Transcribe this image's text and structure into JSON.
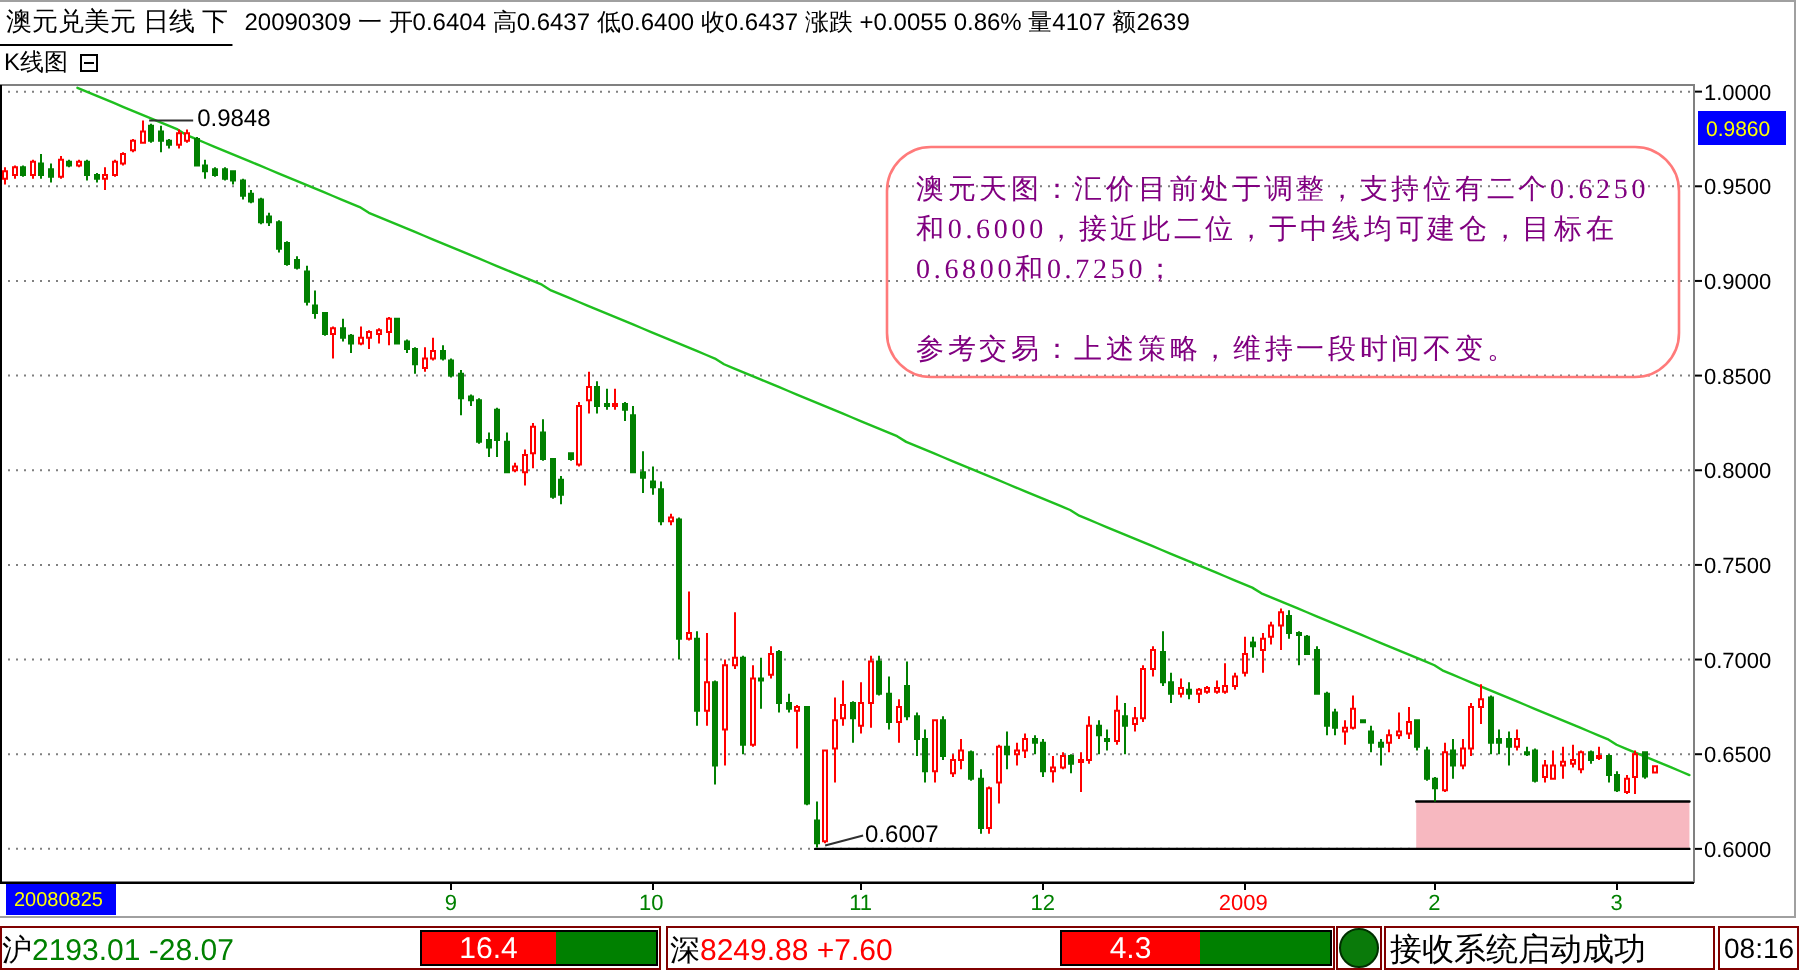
{
  "chart_data": {
    "type": "candlestick",
    "title": "澳元兑美元 日线 下",
    "subtitle": "20090309 一 开0.6404 高0.6437 低0.6400 收0.6437 涨跌 +0.0055 0.86% 量4107 额2639",
    "categories": [
      null,
      null,
      null,
      null,
      null,
      null,
      null,
      null,
      null,
      null,
      null,
      null,
      null,
      null,
      null,
      null,
      null,
      null,
      null,
      null,
      null,
      null,
      null,
      null,
      null,
      null,
      null,
      null,
      null,
      null,
      null,
      null,
      null,
      null,
      null,
      null,
      null,
      null,
      null,
      null,
      null,
      null,
      null,
      null,
      null,
      null,
      null,
      null,
      null,
      "9",
      null,
      null,
      null,
      null,
      null,
      null,
      null,
      null,
      null,
      null,
      null,
      null,
      null,
      null,
      null,
      null,
      null,
      null,
      null,
      null,
      null,
      "10",
      null,
      null,
      null,
      null,
      null,
      null,
      null,
      null,
      null,
      null,
      null,
      null,
      null,
      null,
      null,
      null,
      null,
      null,
      null,
      null,
      null,
      null,
      "11",
      null,
      null,
      null,
      null,
      null,
      null,
      null,
      null,
      null,
      null,
      null,
      null,
      null,
      null,
      null,
      null,
      null,
      null,
      null,
      "12",
      null,
      null,
      null,
      null,
      null,
      null,
      null,
      null,
      null,
      null,
      null,
      null,
      null,
      null,
      null,
      null,
      null,
      null,
      null,
      null,
      null,
      "2009",
      null,
      null,
      null,
      null,
      null,
      null,
      null,
      null,
      null,
      null,
      null,
      null,
      null,
      null,
      null,
      null,
      null,
      null,
      null,
      null,
      "2",
      null,
      null,
      null,
      null,
      null,
      null,
      null,
      null,
      null,
      null,
      null,
      null,
      null,
      null,
      null,
      null,
      null,
      null,
      null,
      "3",
      null,
      null,
      null,
      null,
      null,
      null,
      null,
      null
    ],
    "ohlc": [
      [
        0.954,
        0.96,
        0.951,
        0.958
      ],
      [
        0.956,
        0.961,
        0.954,
        0.96
      ],
      [
        0.96,
        0.961,
        0.955,
        0.956
      ],
      [
        0.956,
        0.964,
        0.954,
        0.963
      ],
      [
        0.962,
        0.967,
        0.954,
        0.956
      ],
      [
        0.959,
        0.962,
        0.952,
        0.955
      ],
      [
        0.955,
        0.966,
        0.954,
        0.964
      ],
      [
        0.963,
        0.964,
        0.96,
        0.961
      ],
      [
        0.961,
        0.964,
        0.96,
        0.963
      ],
      [
        0.963,
        0.964,
        0.953,
        0.956
      ],
      [
        0.956,
        0.957,
        0.952,
        0.954
      ],
      [
        0.954,
        0.96,
        0.948,
        0.956
      ],
      [
        0.956,
        0.964,
        0.955,
        0.963
      ],
      [
        0.962,
        0.968,
        0.961,
        0.967
      ],
      [
        0.969,
        0.975,
        0.968,
        0.974
      ],
      [
        0.973,
        0.9848,
        0.973,
        0.979
      ],
      [
        0.982,
        0.983,
        0.973,
        0.974
      ],
      [
        0.979,
        0.982,
        0.968,
        0.974
      ],
      [
        0.974,
        0.975,
        0.97,
        0.972
      ],
      [
        0.972,
        0.98,
        0.97,
        0.978
      ],
      [
        0.974,
        0.98,
        0.973,
        0.978
      ],
      [
        0.975,
        0.976,
        0.961,
        0.961
      ],
      [
        0.961,
        0.964,
        0.954,
        0.958
      ],
      [
        0.959,
        0.96,
        0.955,
        0.956
      ],
      [
        0.959,
        0.96,
        0.953,
        0.954
      ],
      [
        0.958,
        0.958,
        0.951,
        0.953
      ],
      [
        0.953,
        0.954,
        0.943,
        0.945
      ],
      [
        0.946,
        0.948,
        0.941,
        0.942
      ],
      [
        0.943,
        0.944,
        0.93,
        0.931
      ],
      [
        0.934,
        0.936,
        0.929,
        0.931
      ],
      [
        0.931,
        0.932,
        0.915,
        0.917
      ],
      [
        0.92,
        0.921,
        0.908,
        0.909
      ],
      [
        0.911,
        0.913,
        0.906,
        0.907
      ],
      [
        0.905,
        0.908,
        0.887,
        0.889
      ],
      [
        0.887,
        0.895,
        0.88,
        0.883
      ],
      [
        0.883,
        0.883,
        0.871,
        0.872
      ],
      [
        0.872,
        0.876,
        0.859,
        0.875
      ],
      [
        0.875,
        0.88,
        0.868,
        0.87
      ],
      [
        0.871,
        0.872,
        0.862,
        0.867
      ],
      [
        0.867,
        0.876,
        0.866,
        0.87
      ],
      [
        0.87,
        0.874,
        0.864,
        0.873
      ],
      [
        0.872,
        0.875,
        0.867,
        0.874
      ],
      [
        0.873,
        0.881,
        0.866,
        0.88
      ],
      [
        0.88,
        0.88,
        0.867,
        0.867
      ],
      [
        0.868,
        0.869,
        0.862,
        0.864
      ],
      [
        0.864,
        0.865,
        0.851,
        0.856
      ],
      [
        0.854,
        0.865,
        0.852,
        0.859
      ],
      [
        0.859,
        0.87,
        0.858,
        0.863
      ],
      [
        0.863,
        0.866,
        0.858,
        0.859
      ],
      [
        0.858,
        0.859,
        0.849,
        0.85
      ],
      [
        0.851,
        0.853,
        0.829,
        0.838
      ],
      [
        0.839,
        0.84,
        0.834,
        0.837
      ],
      [
        0.837,
        0.838,
        0.814,
        0.815
      ],
      [
        0.816,
        0.82,
        0.807,
        0.812
      ],
      [
        0.832,
        0.833,
        0.807,
        0.816
      ],
      [
        0.815,
        0.82,
        0.799,
        0.799
      ],
      [
        0.8,
        0.804,
        0.799,
        0.802
      ],
      [
        0.799,
        0.811,
        0.792,
        0.808
      ],
      [
        0.809,
        0.825,
        0.801,
        0.823
      ],
      [
        0.82,
        0.827,
        0.805,
        0.806
      ],
      [
        0.806,
        0.806,
        0.785,
        0.786
      ],
      [
        0.795,
        0.797,
        0.782,
        0.787
      ],
      [
        0.809,
        0.809,
        0.805,
        0.806
      ],
      [
        0.803,
        0.836,
        0.802,
        0.834
      ],
      [
        0.837,
        0.852,
        0.83,
        0.844
      ],
      [
        0.844,
        0.847,
        0.83,
        0.834
      ],
      [
        0.835,
        0.843,
        0.832,
        0.834
      ],
      [
        0.834,
        0.843,
        0.832,
        0.835
      ],
      [
        0.835,
        0.836,
        0.826,
        0.832
      ],
      [
        0.829,
        0.834,
        0.799,
        0.799
      ],
      [
        0.799,
        0.81,
        0.788,
        0.796
      ],
      [
        0.794,
        0.802,
        0.787,
        0.791
      ],
      [
        0.79,
        0.794,
        0.771,
        0.773
      ],
      [
        0.773,
        0.777,
        0.771,
        0.775
      ],
      [
        0.774,
        0.775,
        0.7,
        0.711
      ],
      [
        0.711,
        0.736,
        0.71,
        0.714
      ],
      [
        0.711,
        0.715,
        0.665,
        0.673
      ],
      [
        0.673,
        0.714,
        0.665,
        0.688
      ],
      [
        0.688,
        0.689,
        0.634,
        0.644
      ],
      [
        0.663,
        0.7,
        0.644,
        0.697
      ],
      [
        0.697,
        0.725,
        0.695,
        0.701
      ],
      [
        0.701,
        0.702,
        0.65,
        0.655
      ],
      [
        0.655,
        0.697,
        0.654,
        0.69
      ],
      [
        0.69,
        0.701,
        0.674,
        0.689
      ],
      [
        0.692,
        0.707,
        0.69,
        0.703
      ],
      [
        0.704,
        0.705,
        0.672,
        0.677
      ],
      [
        0.677,
        0.682,
        0.672,
        0.674
      ],
      [
        0.673,
        0.676,
        0.653,
        0.675
      ],
      [
        0.675,
        0.675,
        0.623,
        0.624
      ],
      [
        0.615,
        0.625,
        0.6007,
        0.603
      ],
      [
        0.604,
        0.652,
        0.603,
        0.652
      ],
      [
        0.653,
        0.68,
        0.635,
        0.668
      ],
      [
        0.669,
        0.689,
        0.665,
        0.676
      ],
      [
        0.677,
        0.678,
        0.656,
        0.669
      ],
      [
        0.665,
        0.688,
        0.661,
        0.677
      ],
      [
        0.677,
        0.702,
        0.664,
        0.699
      ],
      [
        0.699,
        0.702,
        0.681,
        0.682
      ],
      [
        0.682,
        0.691,
        0.663,
        0.667
      ],
      [
        0.667,
        0.679,
        0.656,
        0.675
      ],
      [
        0.686,
        0.699,
        0.668,
        0.67
      ],
      [
        0.67,
        0.672,
        0.649,
        0.658
      ],
      [
        0.658,
        0.663,
        0.635,
        0.641
      ],
      [
        0.641,
        0.668,
        0.635,
        0.668
      ],
      [
        0.668,
        0.67,
        0.647,
        0.649
      ],
      [
        0.64,
        0.65,
        0.638,
        0.647
      ],
      [
        0.647,
        0.658,
        0.642,
        0.652
      ],
      [
        0.651,
        0.652,
        0.636,
        0.637
      ],
      [
        0.637,
        0.642,
        0.608,
        0.611
      ],
      [
        0.611,
        0.633,
        0.608,
        0.632
      ],
      [
        0.635,
        0.655,
        0.624,
        0.654
      ],
      [
        0.654,
        0.662,
        0.642,
        0.65
      ],
      [
        0.65,
        0.656,
        0.644,
        0.652
      ],
      [
        0.652,
        0.661,
        0.648,
        0.658
      ],
      [
        0.658,
        0.66,
        0.65,
        0.656
      ],
      [
        0.656,
        0.658,
        0.638,
        0.641
      ],
      [
        0.641,
        0.649,
        0.635,
        0.643
      ],
      [
        0.643,
        0.651,
        0.642,
        0.649
      ],
      [
        0.649,
        0.65,
        0.64,
        0.645
      ],
      [
        0.646,
        0.651,
        0.63,
        0.647
      ],
      [
        0.647,
        0.67,
        0.645,
        0.665
      ],
      [
        0.665,
        0.668,
        0.65,
        0.66
      ],
      [
        0.658,
        0.663,
        0.652,
        0.657
      ],
      [
        0.657,
        0.681,
        0.655,
        0.673
      ],
      [
        0.67,
        0.677,
        0.65,
        0.665
      ],
      [
        0.666,
        0.675,
        0.662,
        0.669
      ],
      [
        0.669,
        0.697,
        0.667,
        0.695
      ],
      [
        0.695,
        0.707,
        0.691,
        0.705
      ],
      [
        0.704,
        0.715,
        0.686,
        0.688
      ],
      [
        0.688,
        0.693,
        0.677,
        0.682
      ],
      [
        0.682,
        0.69,
        0.68,
        0.685
      ],
      [
        0.684,
        0.688,
        0.679,
        0.682
      ],
      [
        0.682,
        0.685,
        0.677,
        0.684
      ],
      [
        0.683,
        0.686,
        0.682,
        0.685
      ],
      [
        0.683,
        0.689,
        0.682,
        0.685
      ],
      [
        0.683,
        0.698,
        0.682,
        0.686
      ],
      [
        0.686,
        0.693,
        0.684,
        0.691
      ],
      [
        0.693,
        0.712,
        0.691,
        0.703
      ],
      [
        0.709,
        0.712,
        0.701,
        0.707
      ],
      [
        0.705,
        0.714,
        0.693,
        0.711
      ],
      [
        0.712,
        0.72,
        0.708,
        0.718
      ],
      [
        0.718,
        0.727,
        0.705,
        0.725
      ],
      [
        0.723,
        0.726,
        0.711,
        0.714
      ],
      [
        0.714,
        0.715,
        0.697,
        0.713
      ],
      [
        0.712,
        0.713,
        0.703,
        0.703
      ],
      [
        0.705,
        0.707,
        0.682,
        0.682
      ],
      [
        0.682,
        0.683,
        0.66,
        0.665
      ],
      [
        0.672,
        0.674,
        0.66,
        0.664
      ],
      [
        0.662,
        0.668,
        0.655,
        0.664
      ],
      [
        0.664,
        0.681,
        0.663,
        0.674
      ],
      [
        0.668,
        0.668,
        0.667,
        0.667
      ],
      [
        0.662,
        0.665,
        0.651,
        0.656
      ],
      [
        0.656,
        0.658,
        0.644,
        0.654
      ],
      [
        0.656,
        0.663,
        0.651,
        0.66
      ],
      [
        0.66,
        0.672,
        0.658,
        0.662
      ],
      [
        0.661,
        0.675,
        0.658,
        0.667
      ],
      [
        0.668,
        0.668,
        0.652,
        0.654
      ],
      [
        0.652,
        0.654,
        0.636,
        0.637
      ],
      [
        0.637,
        0.638,
        0.625,
        0.632
      ],
      [
        0.631,
        0.656,
        0.63,
        0.651
      ],
      [
        0.652,
        0.658,
        0.637,
        0.644
      ],
      [
        0.644,
        0.658,
        0.642,
        0.653
      ],
      [
        0.653,
        0.677,
        0.649,
        0.675
      ],
      [
        0.675,
        0.687,
        0.666,
        0.679
      ],
      [
        0.68,
        0.681,
        0.65,
        0.656
      ],
      [
        0.658,
        0.663,
        0.65,
        0.656
      ],
      [
        0.658,
        0.662,
        0.644,
        0.654
      ],
      [
        0.654,
        0.663,
        0.652,
        0.658
      ],
      [
        0.651,
        0.654,
        0.649,
        0.65
      ],
      [
        0.652,
        0.653,
        0.635,
        0.636
      ],
      [
        0.638,
        0.647,
        0.635,
        0.644
      ],
      [
        0.637,
        0.652,
        0.637,
        0.644
      ],
      [
        0.644,
        0.654,
        0.637,
        0.646
      ],
      [
        0.645,
        0.655,
        0.643,
        0.647
      ],
      [
        0.642,
        0.652,
        0.64,
        0.651
      ],
      [
        0.651,
        0.652,
        0.645,
        0.647
      ],
      [
        0.648,
        0.654,
        0.647,
        0.649
      ],
      [
        0.649,
        0.65,
        0.635,
        0.639
      ],
      [
        0.639,
        0.641,
        0.63,
        0.631
      ],
      [
        0.63,
        0.639,
        0.629,
        0.637
      ],
      [
        0.638,
        0.652,
        0.629,
        0.65
      ],
      [
        0.651,
        0.651,
        0.637,
        0.6382
      ],
      [
        0.6404,
        0.6437,
        0.64,
        0.6437
      ],
      null,
      null,
      null,
      null
    ],
    "series": [
      {
        "type": "line",
        "color": "#000000",
        "values": [
          null,
          null,
          null,
          null,
          null,
          null,
          null,
          null,
          null,
          null,
          null,
          null,
          null,
          null,
          null,
          null,
          null,
          null,
          null,
          null,
          null,
          null,
          null,
          null,
          null,
          null,
          null,
          null,
          null,
          null,
          null,
          null,
          null,
          null,
          null,
          null,
          null,
          null,
          null,
          null,
          null,
          null,
          null,
          null,
          null,
          null,
          null,
          null,
          null,
          null,
          null,
          null,
          null,
          null,
          null,
          null,
          null,
          null,
          null,
          null,
          null,
          null,
          null,
          null,
          null,
          null,
          null,
          null,
          null,
          null,
          null,
          null,
          null,
          null,
          null,
          null,
          null,
          null,
          null,
          null,
          null,
          null,
          null,
          null,
          null,
          null,
          null,
          null,
          null,
          null,
          null,
          null,
          null,
          null,
          null,
          null,
          null,
          null,
          null,
          null,
          null,
          null,
          null,
          null,
          null,
          null,
          null,
          null,
          null,
          null,
          null,
          null,
          null,
          null,
          null,
          null,
          null,
          null,
          null,
          null,
          null,
          null,
          null,
          null,
          null,
          null,
          null,
          null,
          null,
          null,
          null,
          null,
          null,
          null,
          null,
          null,
          null,
          null,
          null,
          null,
          null,
          null,
          null,
          null,
          null,
          null,
          null,
          null,
          null,
          null,
          null,
          null,
          null,
          null,
          null,
          0.625,
          0.625,
          0.625,
          0.625,
          0.625,
          0.625,
          0.625,
          0.625,
          0.625,
          0.625,
          0.625,
          0.625,
          0.625,
          0.625,
          0.625,
          0.625,
          0.625,
          0.625,
          0.625,
          0.625,
          0.625,
          0.625,
          0.625,
          0.625,
          0.625,
          0.625,
          0.625,
          0.625,
          0.625,
          0.625,
          0.625
        ],
        "lower": [
          null,
          null,
          null,
          null,
          null,
          null,
          null,
          null,
          null,
          null,
          null,
          null,
          null,
          null,
          null,
          null,
          null,
          null,
          null,
          null,
          null,
          null,
          null,
          null,
          null,
          null,
          null,
          null,
          null,
          null,
          null,
          null,
          null,
          null,
          null,
          null,
          null,
          null,
          null,
          null,
          null,
          null,
          null,
          null,
          null,
          null,
          null,
          null,
          null,
          null,
          null,
          null,
          null,
          null,
          null,
          null,
          null,
          null,
          null,
          null,
          null,
          null,
          null,
          null,
          null,
          null,
          null,
          null,
          null,
          null,
          null,
          null,
          null,
          null,
          null,
          null,
          null,
          null,
          null,
          null,
          null,
          null,
          null,
          null,
          null,
          null,
          null,
          null,
          null,
          null,
          null,
          null,
          null,
          null,
          null,
          null,
          null,
          null,
          null,
          null,
          null,
          null,
          null,
          null,
          null,
          null,
          null,
          null,
          null,
          null,
          null,
          null,
          null,
          null,
          null,
          null,
          null,
          null,
          null,
          null,
          null,
          null,
          null,
          null,
          null,
          null,
          null,
          null,
          null,
          null,
          null,
          null,
          null,
          null,
          null,
          null,
          null,
          null,
          null,
          null,
          null,
          null,
          null,
          null,
          null,
          null,
          null,
          null,
          null,
          null,
          null,
          null,
          null,
          null,
          null,
          0.6,
          0.6,
          0.6,
          0.6,
          0.6,
          0.6,
          0.6,
          0.6,
          0.6,
          0.6,
          0.6,
          0.6,
          0.6,
          0.6,
          0.6,
          0.6,
          0.6,
          0.6,
          0.6,
          0.6,
          0.6,
          0.6,
          0.6,
          0.6,
          0.6,
          0.6,
          0.6,
          0.6,
          0.6,
          0.6,
          0.6
        ],
        "upper": [
          null,
          null,
          null,
          null,
          null,
          null,
          null,
          null,
          null,
          null,
          null,
          null,
          null,
          null,
          null,
          null,
          null,
          null,
          null,
          null,
          null,
          null,
          null,
          null,
          null,
          null,
          null,
          null,
          null,
          null,
          null,
          null,
          null,
          null,
          null,
          null,
          null,
          null,
          null,
          null,
          null,
          null,
          null,
          null,
          null,
          null,
          null,
          null,
          null,
          null,
          null,
          null,
          null,
          null,
          null,
          null,
          null,
          null,
          null,
          null,
          null,
          null,
          null,
          null,
          null,
          null,
          null,
          null,
          null,
          null,
          null,
          null,
          null,
          null,
          null,
          null,
          null,
          null,
          null,
          null,
          null,
          null,
          null,
          null,
          null,
          null,
          null,
          null,
          null,
          null,
          null,
          null,
          null,
          null,
          null,
          null,
          null,
          null,
          null,
          null,
          null,
          null,
          null,
          null,
          null,
          null,
          null,
          null,
          null,
          null,
          null,
          null,
          null,
          null,
          null,
          null,
          null,
          null,
          null,
          null,
          null,
          null,
          null,
          null,
          null,
          null,
          null,
          null,
          null,
          null,
          null,
          null,
          null,
          null,
          null,
          null,
          null,
          null,
          null,
          null,
          null,
          null,
          null,
          null,
          null,
          null,
          null,
          null,
          null,
          null,
          null,
          null,
          null,
          null,
          null,
          0.625,
          0.625,
          0.625,
          0.625,
          0.625,
          0.625,
          0.625,
          0.625,
          0.625,
          0.625,
          0.625,
          0.625,
          0.625,
          0.625,
          0.625,
          0.625,
          0.625,
          0.625,
          0.625,
          0.625,
          0.625,
          0.625,
          0.625,
          0.625,
          0.625,
          0.625,
          0.625,
          0.625,
          0.625,
          0.625,
          0.625
        ]
      },
      {
        "type": "line",
        "color": "#000000",
        "values": [
          null,
          null,
          null,
          null,
          null,
          null,
          null,
          null,
          null,
          null,
          null,
          null,
          null,
          null,
          null,
          null,
          null,
          null,
          null,
          null,
          null,
          null,
          null,
          null,
          null,
          null,
          null,
          null,
          null,
          null,
          null,
          null,
          null,
          null,
          null,
          null,
          null,
          null,
          null,
          null,
          null,
          null,
          null,
          null,
          null,
          null,
          null,
          null,
          null,
          null,
          null,
          null,
          null,
          null,
          null,
          null,
          null,
          null,
          null,
          null,
          null,
          null,
          null,
          null,
          null,
          null,
          null,
          null,
          null,
          null,
          null,
          null,
          null,
          null,
          null,
          null,
          null,
          null,
          null,
          null,
          null,
          null,
          null,
          null,
          null,
          null,
          null,
          null,
          null,
          0.6,
          0.6,
          0.6,
          0.6,
          0.6,
          0.6,
          0.6,
          0.6,
          0.6,
          0.6,
          0.6,
          0.6,
          0.6,
          0.6,
          0.6,
          0.6,
          0.6,
          0.6,
          0.6,
          0.6,
          0.6,
          0.6,
          0.6,
          0.6,
          0.6,
          0.6,
          0.6,
          0.6,
          0.6,
          0.6,
          0.6,
          0.6,
          0.6,
          0.6,
          0.6,
          0.6,
          0.6,
          0.6,
          0.6,
          0.6,
          0.6,
          0.6,
          0.6,
          0.6,
          0.6,
          0.6,
          0.6,
          0.6,
          0.6,
          0.6,
          0.6,
          0.6,
          0.6,
          0.6,
          0.6,
          0.6,
          0.6,
          0.6,
          0.6,
          0.6,
          0.6,
          0.6,
          0.6,
          0.6,
          0.6,
          0.6,
          0.6,
          0.6,
          0.6,
          0.6,
          0.6,
          0.6,
          0.6,
          0.6,
          0.6,
          0.6,
          0.6,
          0.6,
          0.6,
          0.6,
          0.6,
          0.6,
          0.6,
          0.6,
          0.6,
          0.6,
          0.6,
          0.6,
          0.6,
          0.6,
          0.6,
          0.6,
          0.6,
          0.6,
          0.6,
          0.6,
          0.6
        ]
      },
      {
        "type": "line",
        "color": "#1fbf1f",
        "values": [
          null,
          null,
          null,
          null,
          null,
          null,
          null,
          null,
          1.002,
          1.0,
          0.998,
          0.996,
          0.994,
          0.992,
          0.99,
          0.988,
          0.986,
          0.984,
          0.982,
          0.98,
          0.977,
          0.975,
          0.973,
          0.971,
          0.969,
          0.967,
          0.965,
          0.963,
          0.961,
          0.959,
          0.957,
          0.955,
          0.953,
          0.951,
          0.949,
          0.947,
          0.945,
          0.943,
          0.941,
          0.939,
          0.936,
          0.934,
          0.932,
          0.93,
          0.928,
          0.926,
          0.924,
          0.922,
          0.92,
          0.918,
          0.916,
          0.914,
          0.912,
          0.91,
          0.908,
          0.906,
          0.904,
          0.902,
          0.9,
          0.898,
          0.895,
          0.893,
          0.891,
          0.889,
          0.887,
          0.885,
          0.883,
          0.881,
          0.879,
          0.877,
          0.875,
          0.873,
          0.871,
          0.869,
          0.867,
          0.865,
          0.863,
          0.861,
          0.859,
          0.856,
          0.854,
          0.852,
          0.85,
          0.848,
          0.846,
          0.844,
          0.842,
          0.84,
          0.838,
          0.836,
          0.834,
          0.832,
          0.83,
          0.828,
          0.826,
          0.824,
          0.822,
          0.82,
          0.818,
          0.815,
          0.813,
          0.811,
          0.809,
          0.807,
          0.805,
          0.803,
          0.801,
          0.799,
          0.797,
          0.795,
          0.793,
          0.791,
          0.789,
          0.787,
          0.785,
          0.783,
          0.781,
          0.779,
          0.776,
          0.774,
          0.772,
          0.77,
          0.768,
          0.766,
          0.764,
          0.762,
          0.76,
          0.758,
          0.756,
          0.754,
          0.752,
          0.75,
          0.748,
          0.746,
          0.744,
          0.742,
          0.74,
          0.738,
          0.735,
          0.733,
          0.731,
          0.729,
          0.727,
          0.725,
          0.723,
          0.721,
          0.719,
          0.717,
          0.715,
          0.713,
          0.711,
          0.709,
          0.707,
          0.705,
          0.703,
          0.701,
          0.699,
          0.697,
          0.694,
          0.692,
          0.69,
          0.688,
          0.686,
          0.684,
          0.682,
          0.68,
          0.678,
          0.676,
          0.674,
          0.672,
          0.67,
          0.668,
          0.666,
          0.664,
          0.662,
          0.66,
          0.658,
          0.655,
          0.653,
          0.651,
          0.649,
          0.647,
          0.645,
          0.643,
          0.641,
          0.639
        ]
      }
    ],
    "ylim": [
      0.5825,
      1.0035
    ],
    "yticks": [
      {
        "value": 0.6,
        "label": "0.6000"
      },
      {
        "value": 0.65,
        "label": "0.6500"
      },
      {
        "value": 0.7,
        "label": "0.7000"
      },
      {
        "value": 0.75,
        "label": "0.7500"
      },
      {
        "value": 0.8,
        "label": "0.8000"
      },
      {
        "value": 0.85,
        "label": "0.8500"
      },
      {
        "value": 0.9,
        "label": "0.9000"
      },
      {
        "value": 0.95,
        "label": "0.9500"
      },
      {
        "value": 1.0,
        "label": "1.0000"
      }
    ],
    "grid": "y",
    "annotations": [
      "K线图",
      "澳元天图：汇价目前处于调整，支持位有二个0.6250和0.6000，接近此二位，于中线均可建仓，目标在0.6800和0.7250；",
      "参考交易：上述策略，维持一段时间不变。",
      "0.9848",
      {
        "text": "0.6007",
        "y": 0.6007
      },
      "0.9860",
      "20080825",
      "沪2193.01 -28.07",
      "16.4",
      "深8249.88 +7.60",
      "4.3",
      "接收系统启动成功",
      "08:16"
    ]
  }
}
